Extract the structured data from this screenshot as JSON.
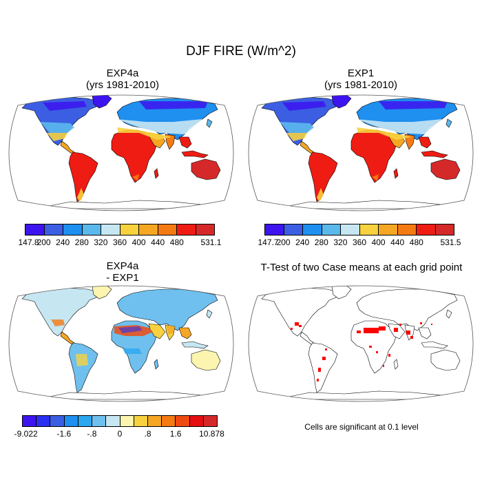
{
  "title": "DJF FIRE (W/m^2)",
  "panels": [
    {
      "id": "exp4a",
      "title_line1": "EXP4a",
      "title_line2": "(yrs 1981-2010)"
    },
    {
      "id": "exp1",
      "title_line1": "EXP1",
      "title_line2": "(yrs 1981-2010)"
    },
    {
      "id": "diff",
      "title_line1": "EXP4a",
      "title_line2": "- EXP1"
    },
    {
      "id": "ttest",
      "title_line1": "T-Test of two Case means at each grid point",
      "title_line2": ""
    }
  ],
  "colorbars": {
    "abs_colors": [
      "#3d14f0",
      "#3b5ee3",
      "#1f8ff0",
      "#5bb8eb",
      "#c6e6f2",
      "#f7d23e",
      "#f5a623",
      "#f47a14",
      "#ef1c13",
      "#d52929"
    ],
    "exp4a_labels": [
      "147.8",
      "200",
      "240",
      "280",
      "320",
      "360",
      "400",
      "440",
      "480",
      "531.1"
    ],
    "exp1_labels": [
      "147.7",
      "200",
      "240",
      "280",
      "320",
      "360",
      "400",
      "440",
      "480",
      "531.5"
    ],
    "diff_colors": [
      "#3d14f0",
      "#2b2ff0",
      "#3b5ee3",
      "#1f8ff0",
      "#2aa7ef",
      "#6fc0ee",
      "#c6e6f2",
      "#fbf5b0",
      "#f7d23e",
      "#f5a623",
      "#f47a14",
      "#ee4b13",
      "#e50f12",
      "#d52929"
    ],
    "diff_labels": [
      "-9.022",
      "-1.6",
      "-.8",
      "0",
      ".8",
      "1.6",
      "10.878"
    ]
  },
  "ttest_note": "Cells are significant at 0.1 level"
}
